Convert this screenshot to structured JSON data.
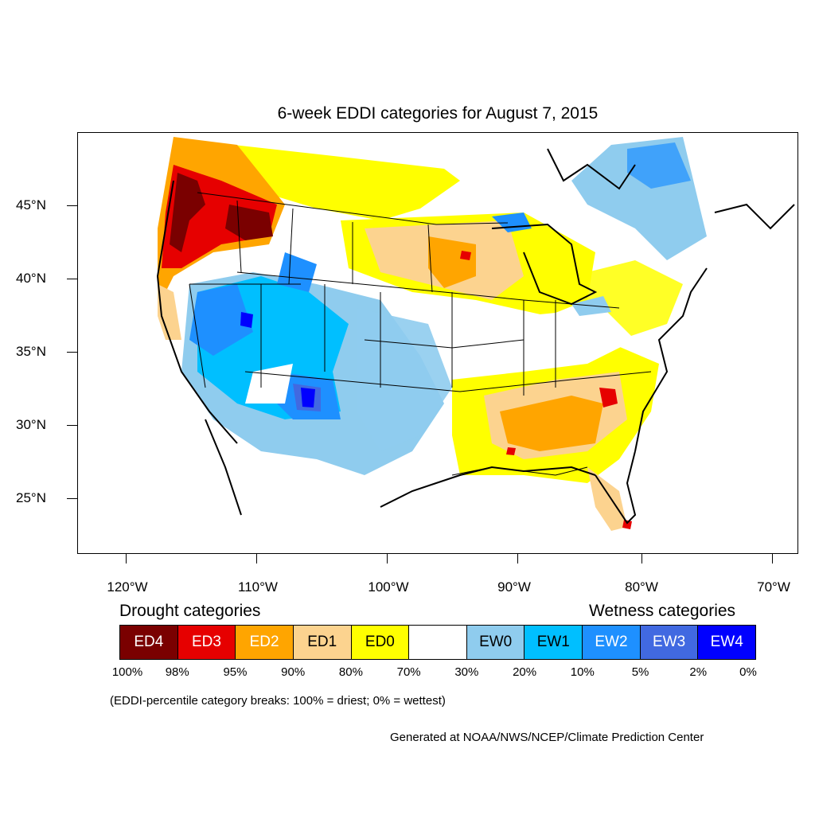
{
  "title": "6-week EDDI categories for August 7, 2015",
  "lat_labels": [
    "45°N",
    "40°N",
    "35°N",
    "30°N",
    "25°N"
  ],
  "lon_labels": [
    "120°W",
    "110°W",
    "100°W",
    "90°W",
    "80°W",
    "70°W"
  ],
  "drought_heading": "Drought categories",
  "wetness_heading": "Wetness categories",
  "legend": [
    {
      "label": "ED4",
      "color": "#7a0000",
      "text_color": "#ffffff"
    },
    {
      "label": "ED3",
      "color": "#e60000",
      "text_color": "#ffffff"
    },
    {
      "label": "ED2",
      "color": "#ffa500",
      "text_color": "#ffffff"
    },
    {
      "label": "ED1",
      "color": "#fcd38f",
      "text_color": "#000000"
    },
    {
      "label": "ED0",
      "color": "#ffff00",
      "text_color": "#000000"
    },
    {
      "label": "",
      "color": "#ffffff",
      "text_color": "#000000"
    },
    {
      "label": "EW0",
      "color": "#8fccee",
      "text_color": "#000000"
    },
    {
      "label": "EW1",
      "color": "#00bfff",
      "text_color": "#000000"
    },
    {
      "label": "EW2",
      "color": "#1e90ff",
      "text_color": "#ffffff"
    },
    {
      "label": "EW3",
      "color": "#4169e1",
      "text_color": "#ffffff"
    },
    {
      "label": "EW4",
      "color": "#0000ff",
      "text_color": "#ffffff"
    }
  ],
  "percent_breaks": [
    "100%",
    "98%",
    "95%",
    "90%",
    "80%",
    "70%",
    "30%",
    "20%",
    "10%",
    "5%",
    "2%",
    "0%"
  ],
  "note": "(EDDI-percentile category breaks: 100% = driest; 0% = wettest)",
  "credit": "Generated at NOAA/NWS/NCEP/Climate Prediction Center"
}
